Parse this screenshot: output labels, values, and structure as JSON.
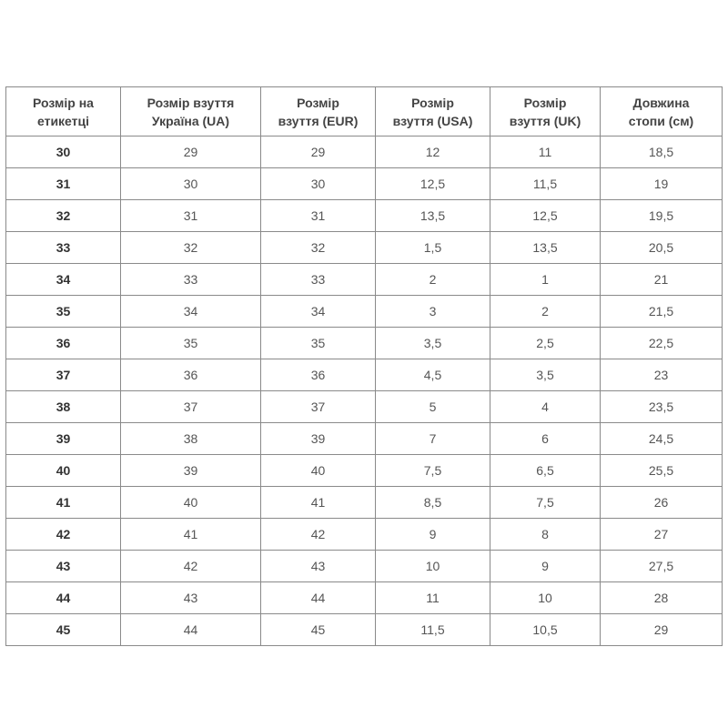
{
  "headers": [
    [
      "Розмір на",
      "етикетці"
    ],
    [
      "Розмір взуття",
      "Україна (UA)"
    ],
    [
      "Розмір",
      "взуття (EUR)"
    ],
    [
      "Розмір",
      "взуття (USA)"
    ],
    [
      "Розмір",
      "взуття (UK)"
    ],
    [
      "Довжина",
      "стопи (см)"
    ]
  ],
  "rows": [
    [
      "30",
      "29",
      "29",
      "12",
      "11",
      "18,5"
    ],
    [
      "31",
      "30",
      "30",
      "12,5",
      "11,5",
      "19"
    ],
    [
      "32",
      "31",
      "31",
      "13,5",
      "12,5",
      "19,5"
    ],
    [
      "33",
      "32",
      "32",
      "1,5",
      "13,5",
      "20,5"
    ],
    [
      "34",
      "33",
      "33",
      "2",
      "1",
      "21"
    ],
    [
      "35",
      "34",
      "34",
      "3",
      "2",
      "21,5"
    ],
    [
      "36",
      "35",
      "35",
      "3,5",
      "2,5",
      "22,5"
    ],
    [
      "37",
      "36",
      "36",
      "4,5",
      "3,5",
      "23"
    ],
    [
      "38",
      "37",
      "37",
      "5",
      "4",
      "23,5"
    ],
    [
      "39",
      "38",
      "39",
      "7",
      "6",
      "24,5"
    ],
    [
      "40",
      "39",
      "40",
      "7,5",
      "6,5",
      "25,5"
    ],
    [
      "41",
      "40",
      "41",
      "8,5",
      "7,5",
      "26"
    ],
    [
      "42",
      "41",
      "42",
      "9",
      "8",
      "27"
    ],
    [
      "43",
      "42",
      "43",
      "10",
      "9",
      "27,5"
    ],
    [
      "44",
      "43",
      "44",
      "11",
      "10",
      "28"
    ],
    [
      "45",
      "44",
      "45",
      "11,5",
      "10,5",
      "29"
    ]
  ]
}
